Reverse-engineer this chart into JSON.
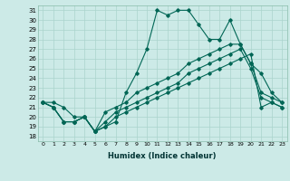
{
  "title": "",
  "xlabel": "Humidex (Indice chaleur)",
  "ylabel": "",
  "bg_color": "#cceae7",
  "grid_color": "#aad4cc",
  "line_color": "#006655",
  "xlim": [
    -0.5,
    23.5
  ],
  "ylim": [
    17.5,
    31.5
  ],
  "xticks": [
    0,
    1,
    2,
    3,
    4,
    5,
    6,
    7,
    8,
    9,
    10,
    11,
    12,
    13,
    14,
    15,
    16,
    17,
    18,
    19,
    20,
    21,
    22,
    23
  ],
  "yticks": [
    18,
    19,
    20,
    21,
    22,
    23,
    24,
    25,
    26,
    27,
    28,
    29,
    30,
    31
  ],
  "series": [
    [
      21.5,
      21.5,
      21.0,
      20.0,
      20.0,
      18.5,
      19.0,
      19.5,
      22.5,
      24.5,
      27.0,
      31.0,
      30.5,
      31.0,
      31.0,
      29.5,
      28.0,
      28.0,
      30.0,
      27.5,
      25.5,
      24.5,
      22.5,
      21.5
    ],
    [
      21.5,
      21.0,
      19.5,
      19.5,
      20.0,
      18.5,
      20.5,
      21.0,
      21.5,
      22.5,
      23.0,
      23.5,
      24.0,
      24.5,
      25.5,
      26.0,
      26.5,
      27.0,
      27.5,
      27.5,
      25.5,
      22.5,
      22.0,
      21.5
    ],
    [
      21.5,
      21.0,
      19.5,
      19.5,
      20.0,
      18.5,
      19.5,
      20.5,
      21.0,
      21.5,
      22.0,
      22.5,
      23.0,
      23.5,
      24.5,
      25.0,
      25.5,
      26.0,
      26.5,
      27.0,
      25.0,
      22.0,
      21.5,
      21.0
    ],
    [
      21.5,
      21.0,
      19.5,
      19.5,
      20.0,
      18.5,
      19.0,
      20.0,
      20.5,
      21.0,
      21.5,
      22.0,
      22.5,
      23.0,
      23.5,
      24.0,
      24.5,
      25.0,
      25.5,
      26.0,
      26.5,
      21.0,
      21.5,
      21.0
    ]
  ]
}
